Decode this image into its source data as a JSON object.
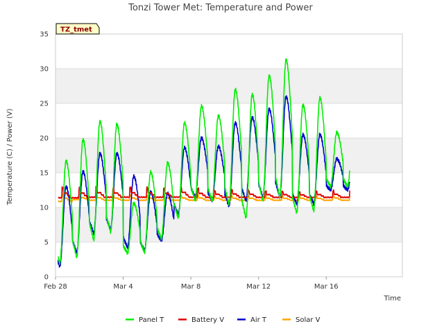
{
  "chart_data": {
    "type": "line",
    "title": "Tonzi Tower Met: Temperature and Power",
    "site_tag": "TZ_tmet",
    "xlabel": "Time",
    "ylabel": "Temperature (C) / Power (V)",
    "x_unit": "days since Feb 28",
    "xlim": [
      0,
      20.5
    ],
    "ylim": [
      0,
      35
    ],
    "y_ticks": [
      0,
      5,
      10,
      15,
      20,
      25,
      30,
      35
    ],
    "x_ticks": [
      {
        "value": 0,
        "label": "Feb 28"
      },
      {
        "value": 4,
        "label": "Mar 4"
      },
      {
        "value": 8,
        "label": "Mar 8"
      },
      {
        "value": 12,
        "label": "Mar 12"
      },
      {
        "value": 16,
        "label": "Mar 16"
      }
    ],
    "grid": "horizontal bands",
    "legend_position": "bottom",
    "series": [
      {
        "name": "Panel T",
        "color": "#00ee00",
        "min_max": [
          [
            2.0,
            16.7
          ],
          [
            2.8,
            19.8
          ],
          [
            5.3,
            22.4
          ],
          [
            6.5,
            22.0
          ],
          [
            3.4,
            10.6
          ],
          [
            3.5,
            15.1
          ],
          [
            5.5,
            16.4
          ],
          [
            8.5,
            22.2
          ],
          [
            11.0,
            24.6
          ],
          [
            11.0,
            23.2
          ],
          [
            10.5,
            27.0
          ],
          [
            8.5,
            26.3
          ],
          [
            11.0,
            29.0
          ],
          [
            11.5,
            31.3
          ],
          [
            9.2,
            24.8
          ],
          [
            9.5,
            25.8
          ],
          [
            13.0,
            20.8
          ]
        ]
      },
      {
        "name": "Battery V",
        "color": "#dd0000",
        "min_max": [
          [
            11.3,
            13.0
          ],
          [
            11.3,
            13.0
          ],
          [
            11.4,
            13.0
          ],
          [
            11.4,
            12.9
          ],
          [
            11.4,
            13.0
          ],
          [
            11.4,
            13.0
          ],
          [
            11.4,
            12.8
          ],
          [
            11.4,
            13.1
          ],
          [
            11.4,
            12.8
          ],
          [
            11.4,
            12.5
          ],
          [
            11.4,
            12.6
          ],
          [
            11.4,
            12.5
          ],
          [
            11.4,
            12.4
          ],
          [
            11.4,
            12.4
          ],
          [
            11.4,
            12.3
          ],
          [
            11.4,
            12.4
          ],
          [
            11.4,
            12.5
          ]
        ]
      },
      {
        "name": "Air T",
        "color": "#0000cc",
        "min_max": [
          [
            1.5,
            13.0
          ],
          [
            3.5,
            15.2
          ],
          [
            6.3,
            17.8
          ],
          [
            6.8,
            17.8
          ],
          [
            4.2,
            14.5
          ],
          [
            3.8,
            12.2
          ],
          [
            5.2,
            12.0
          ],
          [
            9.0,
            18.6
          ],
          [
            11.5,
            20.0
          ],
          [
            11.0,
            18.8
          ],
          [
            10.2,
            22.2
          ],
          [
            11.0,
            23.0
          ],
          [
            11.5,
            24.2
          ],
          [
            11.5,
            26.0
          ],
          [
            10.5,
            20.5
          ],
          [
            10.5,
            20.5
          ],
          [
            12.5,
            17.0
          ]
        ]
      },
      {
        "name": "Solar V",
        "color": "#ffa500",
        "min_max": [
          [
            10.8,
            12.0
          ],
          [
            11.1,
            11.8
          ],
          [
            11.0,
            11.9
          ],
          [
            11.0,
            11.8
          ],
          [
            11.0,
            11.8
          ],
          [
            11.0,
            11.8
          ],
          [
            11.0,
            11.8
          ],
          [
            11.0,
            11.8
          ],
          [
            11.0,
            11.8
          ],
          [
            11.0,
            11.7
          ],
          [
            11.0,
            11.7
          ],
          [
            11.0,
            11.7
          ],
          [
            11.0,
            11.7
          ],
          [
            11.0,
            11.7
          ],
          [
            11.0,
            11.7
          ],
          [
            11.0,
            11.7
          ],
          [
            11.0,
            11.8
          ]
        ]
      }
    ]
  }
}
